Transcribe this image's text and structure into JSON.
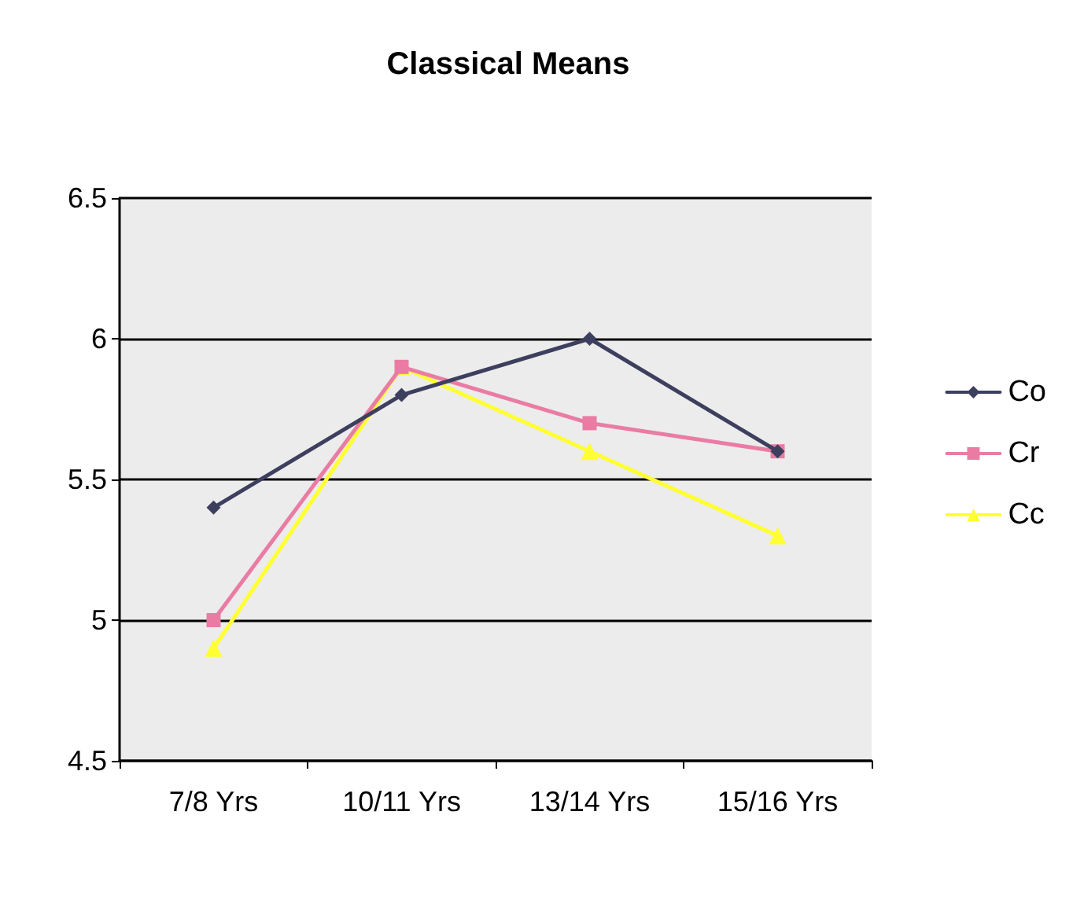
{
  "chart_data": {
    "type": "line",
    "title": "Classical Means",
    "categories": [
      "7/8 Yrs",
      "10/11 Yrs",
      "13/14 Yrs",
      "15/16 Yrs"
    ],
    "series": [
      {
        "name": "Co",
        "color": "#3d3f5e",
        "values": [
          5.4,
          5.8,
          6.0,
          5.6
        ],
        "marker": "diamond"
      },
      {
        "name": "Cr",
        "color": "#ea7ca4",
        "values": [
          5.0,
          5.9,
          5.7,
          5.6
        ],
        "marker": "square"
      },
      {
        "name": "Cc",
        "color": "#ffff33",
        "values": [
          4.9,
          5.9,
          5.6,
          5.3
        ],
        "marker": "triangle"
      }
    ],
    "ylim": [
      4.5,
      6.5
    ],
    "yticks": [
      4.5,
      5,
      5.5,
      6,
      6.5
    ],
    "grid": "y",
    "legend": "right",
    "line_style": "solid"
  }
}
